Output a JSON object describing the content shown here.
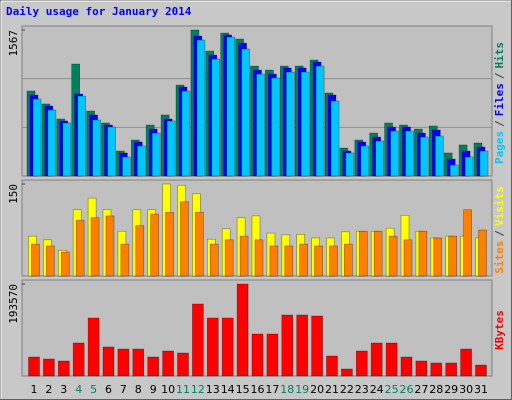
{
  "chart_data": [
    {
      "type": "bar",
      "title": "Daily usage for January 2014",
      "ylim": [
        0,
        1567
      ],
      "yticks": [
        1567
      ],
      "legend_separator": "/",
      "series": [
        {
          "name": "Hits",
          "color": "#00805c",
          "values": [
            912,
            773,
            612,
            1202,
            697,
            569,
            268,
            386,
            547,
            655,
            976,
            1567,
            1341,
            1534,
            1470,
            1180,
            1137,
            1180,
            1180,
            1245,
            891,
            300,
            386,
            461,
            569,
            547,
            504,
            537,
            247,
            333,
            354
          ]
        },
        {
          "name": "Files",
          "color": "#0000ff",
          "values": [
            869,
            751,
            590,
            880,
            655,
            547,
            247,
            365,
            504,
            612,
            955,
            1502,
            1298,
            1513,
            1427,
            1137,
            1094,
            1159,
            1159,
            1223,
            869,
            268,
            365,
            418,
            526,
            526,
            461,
            494,
            182,
            268,
            311
          ]
        },
        {
          "name": "Pages",
          "color": "#00c8ff",
          "values": [
            826,
            708,
            569,
            858,
            601,
            526,
            204,
            322,
            461,
            590,
            912,
            1459,
            1255,
            1491,
            1363,
            1094,
            1052,
            1116,
            1116,
            1180,
            805,
            247,
            322,
            376,
            483,
            483,
            418,
            429,
            118,
            204,
            268
          ]
        }
      ]
    },
    {
      "type": "bar",
      "ylim": [
        0,
        150
      ],
      "yticks": [
        150
      ],
      "legend_separator": "/",
      "series": [
        {
          "name": "Visits",
          "color": "#ffff00",
          "values": [
            65,
            59,
            42,
            108,
            127,
            108,
            73,
            108,
            108,
            150,
            148,
            134,
            60,
            77,
            95,
            98,
            70,
            67,
            68,
            62,
            62,
            72,
            73,
            73,
            78,
            99,
            73,
            62,
            65,
            65,
            62
          ]
        },
        {
          "name": "Sites",
          "color": "#ff8000",
          "values": [
            52,
            49,
            39,
            91,
            95,
            98,
            52,
            82,
            101,
            104,
            121,
            104,
            52,
            59,
            65,
            59,
            49,
            49,
            52,
            49,
            49,
            52,
            73,
            73,
            65,
            59,
            73,
            62,
            65,
            108,
            75
          ]
        }
      ]
    },
    {
      "type": "bar",
      "ylim": [
        0,
        193570
      ],
      "yticks": [
        193570
      ],
      "series": [
        {
          "name": "KBytes",
          "color": "#ff0000",
          "values": [
            39976,
            35768,
            31560,
            69432,
            122032,
            61016,
            56808,
            56808,
            39976,
            52600,
            48392,
            151488,
            122032,
            122032,
            193570,
            88368,
            88368,
            128344,
            128344,
            126240,
            42080,
            14728,
            52600,
            69432,
            69432,
            39976,
            31560,
            27352,
            27352,
            56808,
            23144
          ]
        }
      ],
      "categories": [
        "1",
        "2",
        "3",
        "4",
        "5",
        "6",
        "7",
        "8",
        "9",
        "10",
        "11",
        "12",
        "13",
        "14",
        "15",
        "16",
        "17",
        "18",
        "19",
        "20",
        "21",
        "22",
        "23",
        "24",
        "25",
        "26",
        "27",
        "28",
        "29",
        "30",
        "31"
      ],
      "category_label_colors": [
        "#000000",
        "#000000",
        "#000000",
        "#00805c",
        "#00805c",
        "#000000",
        "#000000",
        "#000000",
        "#000000",
        "#000000",
        "#00805c",
        "#00805c",
        "#000000",
        "#000000",
        "#000000",
        "#000000",
        "#000000",
        "#00805c",
        "#00805c",
        "#000000",
        "#000000",
        "#000000",
        "#000000",
        "#000000",
        "#00805c",
        "#00805c",
        "#000000",
        "#000000",
        "#000000",
        "#000000",
        "#000000"
      ]
    }
  ]
}
